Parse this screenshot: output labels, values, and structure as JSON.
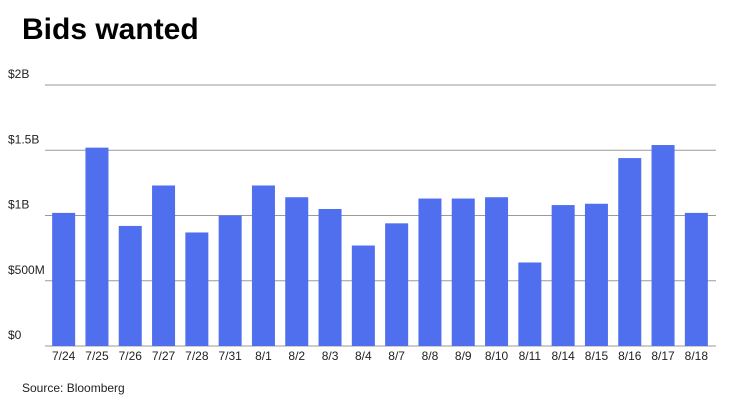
{
  "chart_data": {
    "type": "bar",
    "title": "Bids wanted",
    "source": "Source: Bloomberg",
    "categories": [
      "7/24",
      "7/25",
      "7/26",
      "7/27",
      "7/28",
      "7/31",
      "8/1",
      "8/2",
      "8/3",
      "8/4",
      "8/7",
      "8/8",
      "8/9",
      "8/10",
      "8/11",
      "8/14",
      "8/15",
      "8/16",
      "8/17",
      "8/18"
    ],
    "values": [
      1020000000,
      1520000000,
      920000000,
      1230000000,
      870000000,
      1000000000,
      1230000000,
      1140000000,
      1050000000,
      770000000,
      940000000,
      1130000000,
      1130000000,
      1140000000,
      640000000,
      1080000000,
      1090000000,
      1440000000,
      1540000000,
      1020000000
    ],
    "color": "#4f6fee",
    "ylim": [
      0,
      2000000000
    ],
    "yticks": [
      {
        "value": 0,
        "label": "$0"
      },
      {
        "value": 500000000,
        "label": "$500M"
      },
      {
        "value": 1000000000,
        "label": "$1B"
      },
      {
        "value": 1500000000,
        "label": "$1.5B"
      },
      {
        "value": 2000000000,
        "label": "$2B"
      }
    ],
    "grid": true
  }
}
